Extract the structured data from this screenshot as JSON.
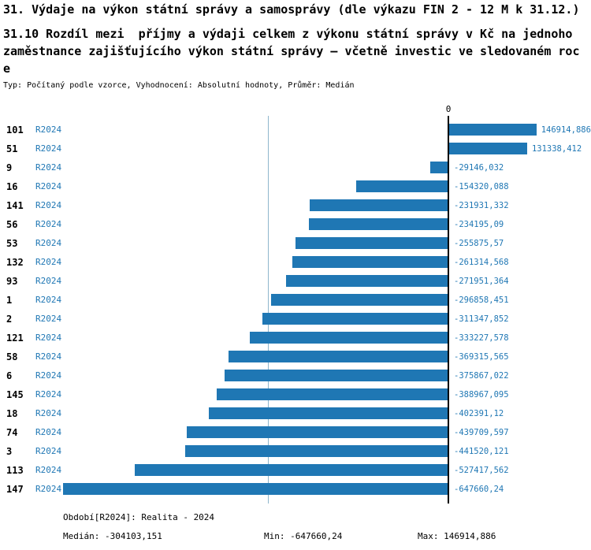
{
  "header": {
    "title1": "31. Výdaje na výkon státní správy a samosprávy (dle výkazu FIN 2 - 12 M k 31.12.)",
    "title2_lines": [
      "31.10 Rozdíl mezi  příjmy a výdaji celkem z výkonu státní správy v Kč na jednoho",
      "zaměstnance zajišťujícího výkon státní správy – včetně investic ve sledovaném roc",
      "e"
    ],
    "meta": "Typ: Počítaný podle vzorce, Vyhodnocení: Absolutní hodnoty, Průměr: Medián"
  },
  "chart_data": {
    "type": "bar",
    "orientation": "horizontal",
    "title": "",
    "xlabel": "",
    "ylabel": "",
    "zero_tick_label": "0",
    "grid": "off",
    "legend": "none",
    "categories": [
      "101",
      "51",
      "9",
      "16",
      "141",
      "56",
      "53",
      "132",
      "93",
      "1",
      "2",
      "121",
      "58",
      "6",
      "145",
      "18",
      "74",
      "3",
      "113",
      "147"
    ],
    "series": [
      {
        "name": "R2024",
        "values": [
          146914.886,
          131338.412,
          -29146.032,
          -154320.088,
          -231931.332,
          -234195.09,
          -255875.57,
          -261314.568,
          -271951.364,
          -296858.451,
          -311347.852,
          -333227.578,
          -369315.565,
          -375867.022,
          -388967.095,
          -402391.12,
          -439709.597,
          -441520.121,
          -527417.562,
          -647660.24
        ]
      }
    ],
    "value_labels": [
      "146914,886",
      "131338,412",
      "-29146,032",
      "-154320,088",
      "-231931,332",
      "-234195,09",
      "-255875,57",
      "-261314,568",
      "-271951,364",
      "-296858,451",
      "-311347,852",
      "-333227,578",
      "-369315,565",
      "-375867,022",
      "-388967,095",
      "-402391,12",
      "-439709,597",
      "-441520,121",
      "-527417,562",
      "-647660,24"
    ],
    "xlim": [
      -647660.24,
      146914.886
    ],
    "median_line_value": -304103.151,
    "bar_color": "#1f77b4",
    "label_color": "#1f77b4",
    "median_line_color": "#8fb6cc",
    "axis_color": "#000000"
  },
  "footer": {
    "period": "Období[R2024]: Realita - 2024",
    "median": "Medián: -304103,151",
    "min": "Min: -647660,24",
    "max": "Max: 146914,886"
  }
}
